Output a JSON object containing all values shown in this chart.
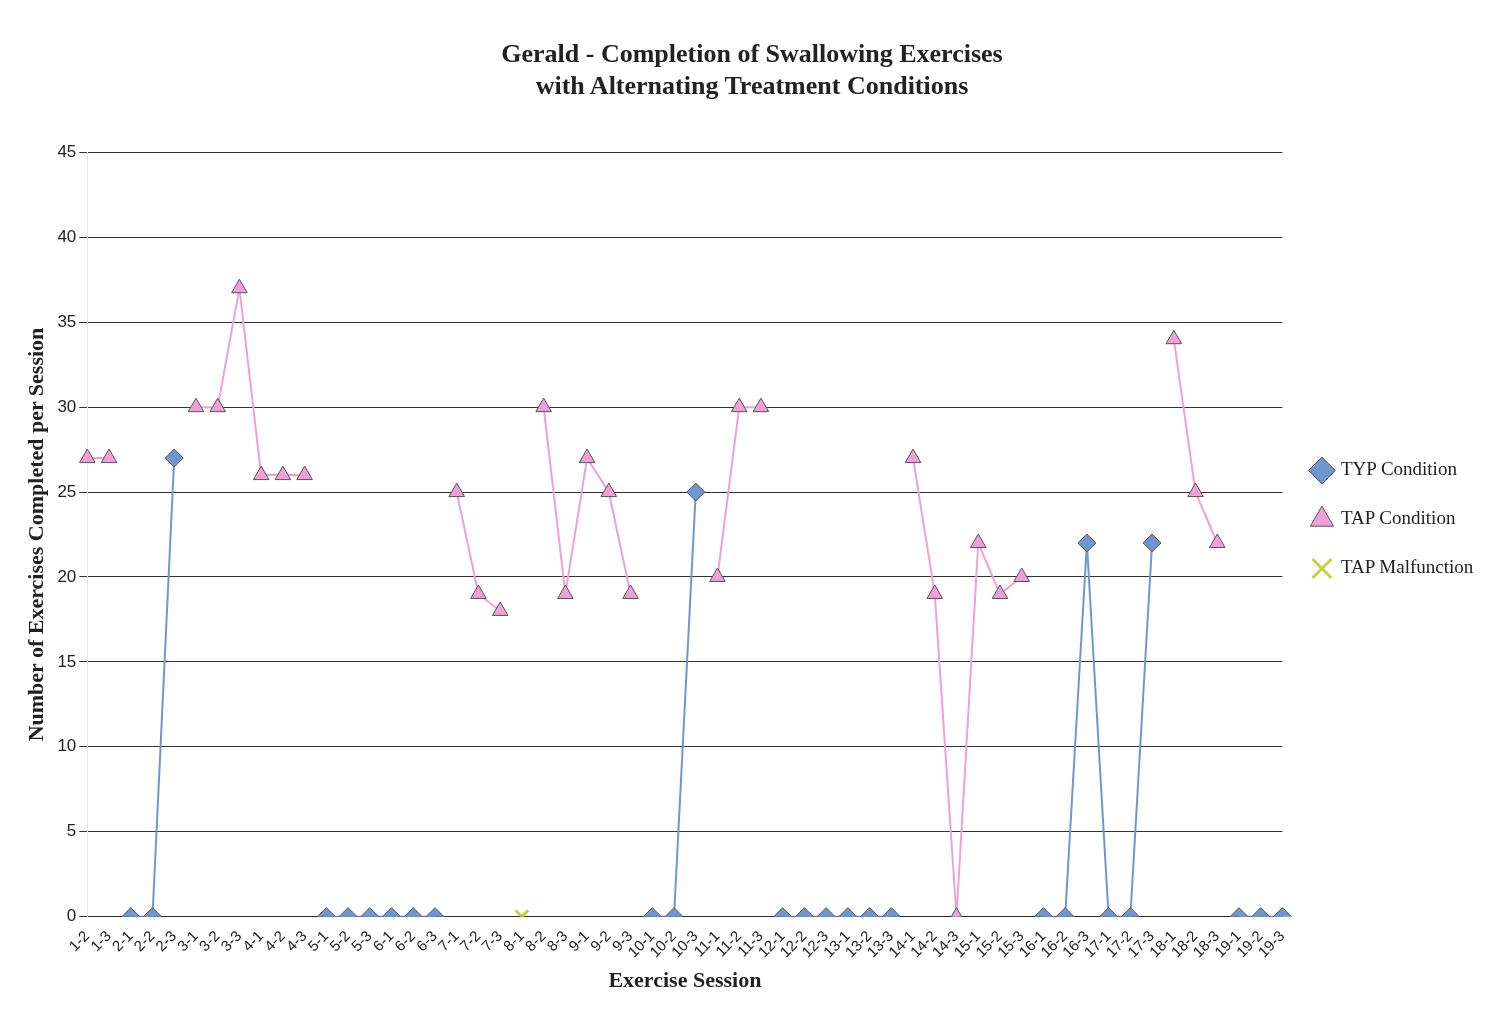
{
  "chart_data": {
    "type": "line",
    "title": "Gerald - Completion of Swallowing Exercises\nwith Alternating Treatment Conditions",
    "xlabel": "Exercise Session",
    "ylabel": "Number of Exercises Completed per Session",
    "categories": [
      "1-2",
      "1-3",
      "2-1",
      "2-2",
      "2-3",
      "3-1",
      "3-2",
      "3-3",
      "4-1",
      "4-2",
      "4-3",
      "5-1",
      "5-2",
      "5-3",
      "6-1",
      "6-2",
      "6-3",
      "7-1",
      "7-2",
      "7-3",
      "8-1",
      "8-2",
      "8-3",
      "9-1",
      "9-2",
      "9-3",
      "10-1",
      "10-2",
      "10-3",
      "11-1",
      "11-2",
      "11-3",
      "12-1",
      "12-2",
      "12-3",
      "13-1",
      "13-2",
      "13-3",
      "14-1",
      "14-2",
      "14-3",
      "15-1",
      "15-2",
      "15-3",
      "16-1",
      "16-2",
      "16-3",
      "17-1",
      "17-2",
      "17-3",
      "18-1",
      "18-2",
      "18-3",
      "19-1",
      "19-2",
      "19-3"
    ],
    "series": [
      {
        "name": "TYP Condition",
        "color": "#6f97cc",
        "marker": "diamond",
        "values": [
          null,
          null,
          0,
          0,
          27,
          null,
          null,
          null,
          null,
          null,
          null,
          0,
          0,
          0,
          0,
          0,
          0,
          null,
          null,
          null,
          null,
          null,
          null,
          null,
          null,
          null,
          0,
          0,
          25,
          null,
          null,
          null,
          0,
          0,
          0,
          0,
          0,
          0,
          null,
          null,
          null,
          null,
          null,
          null,
          0,
          0,
          22,
          0,
          0,
          22,
          null,
          null,
          null,
          0,
          0,
          0
        ]
      },
      {
        "name": "TAP Condition",
        "color": "#f0a0d8",
        "marker": "triangle",
        "values": [
          27,
          27,
          null,
          null,
          null,
          30,
          30,
          37,
          26,
          26,
          26,
          null,
          null,
          null,
          null,
          null,
          null,
          25,
          19,
          18,
          null,
          30,
          19,
          27,
          25,
          19,
          null,
          null,
          null,
          20,
          30,
          30,
          null,
          null,
          null,
          null,
          null,
          null,
          27,
          19,
          0,
          22,
          19,
          20,
          null,
          null,
          null,
          null,
          null,
          null,
          34,
          25,
          22,
          null,
          null,
          null
        ]
      },
      {
        "name": "TAP Malfunction",
        "color": "#c8d040",
        "marker": "cross",
        "values": [
          null,
          null,
          null,
          null,
          null,
          null,
          null,
          null,
          null,
          null,
          null,
          null,
          null,
          null,
          null,
          null,
          null,
          null,
          null,
          null,
          0,
          null,
          null,
          null,
          null,
          null,
          null,
          null,
          null,
          null,
          null,
          null,
          null,
          null,
          null,
          null,
          null,
          null,
          null,
          null,
          null,
          null,
          null,
          null,
          null,
          null,
          null,
          null,
          null,
          null,
          null,
          null,
          null,
          null,
          null,
          null
        ]
      }
    ],
    "ylim": [
      0,
      45
    ],
    "yticks": [
      0,
      5,
      10,
      15,
      20,
      25,
      30,
      35,
      40,
      45
    ],
    "grid": "y",
    "legend": "right"
  }
}
